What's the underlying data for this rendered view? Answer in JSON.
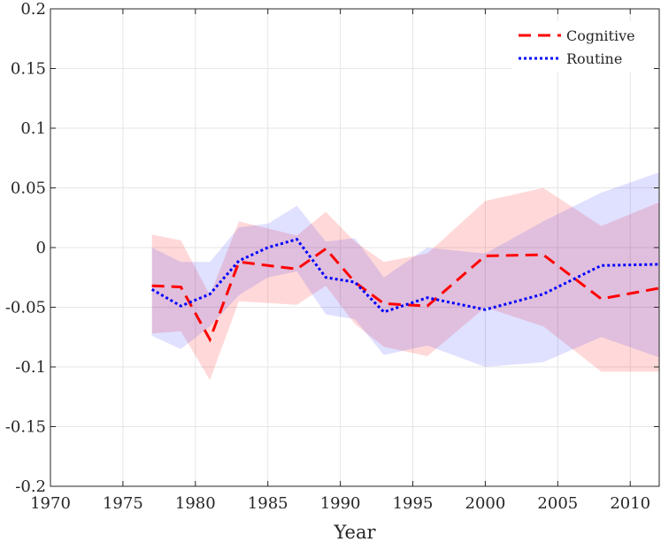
{
  "chart_data": {
    "type": "line",
    "title": "",
    "xlabel": "Year",
    "ylabel": "",
    "xlim": [
      1970,
      2012
    ],
    "ylim": [
      -0.2,
      0.2
    ],
    "grid": true,
    "legend_position": "top-right",
    "x_ticks": [
      "1970",
      "1975",
      "1980",
      "1985",
      "1990",
      "1995",
      "2000",
      "2005",
      "2010"
    ],
    "y_ticks": [
      "0.2",
      "0.15",
      "0.1",
      "0.05",
      "0",
      "-0.05",
      "-0.1",
      "-0.15",
      "-0.2"
    ],
    "series": [
      {
        "name": "Cognitive",
        "color": "#ff0000",
        "style": "dashed",
        "x": [
          1977,
          1979,
          1981,
          1983,
          1987,
          1989,
          1991,
          1993,
          1996,
          2000,
          2004,
          2008,
          2012
        ],
        "y": [
          -0.032,
          -0.033,
          -0.077,
          -0.012,
          -0.018,
          -0.001,
          -0.029,
          -0.047,
          -0.049,
          -0.007,
          -0.006,
          -0.043,
          -0.034
        ],
        "band_upper": [
          0.011,
          0.006,
          -0.04,
          0.022,
          0.01,
          0.03,
          0.005,
          -0.012,
          -0.005,
          0.039,
          0.05,
          0.018,
          0.038
        ],
        "band_lower": [
          -0.072,
          -0.07,
          -0.111,
          -0.045,
          -0.048,
          -0.032,
          -0.064,
          -0.083,
          -0.091,
          -0.05,
          -0.066,
          -0.104,
          -0.104
        ]
      },
      {
        "name": "Routine",
        "color": "#0000ff",
        "style": "dotted",
        "x": [
          1977,
          1979,
          1981,
          1983,
          1985,
          1987,
          1989,
          1991,
          1993,
          1996,
          2000,
          2004,
          2008,
          2012
        ],
        "y": [
          -0.035,
          -0.049,
          -0.039,
          -0.011,
          0.0,
          0.007,
          -0.025,
          -0.029,
          -0.054,
          -0.042,
          -0.052,
          -0.039,
          -0.015,
          -0.014
        ],
        "band_upper": [
          0.0,
          -0.012,
          -0.012,
          0.017,
          0.02,
          0.035,
          0.005,
          0.008,
          -0.025,
          0.0,
          -0.005,
          0.022,
          0.046,
          0.063
        ],
        "band_lower": [
          -0.074,
          -0.085,
          -0.066,
          -0.04,
          -0.025,
          -0.02,
          -0.056,
          -0.06,
          -0.09,
          -0.082,
          -0.1,
          -0.096,
          -0.075,
          -0.092
        ]
      }
    ]
  }
}
